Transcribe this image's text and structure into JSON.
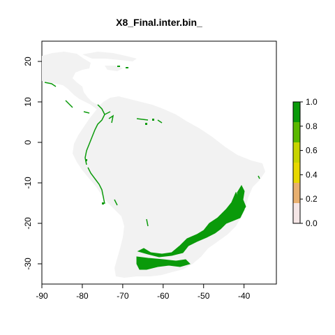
{
  "title": "X8_Final.inter.bin_",
  "map": {
    "x_range": [
      -90,
      -32
    ],
    "y_range": [
      -35,
      25
    ],
    "x_ticks": [
      -90,
      -80,
      -70,
      -60,
      -50,
      -40
    ],
    "y_ticks": [
      20,
      10,
      0,
      -10,
      -20,
      -30
    ],
    "land_color": "#f2f2f2",
    "presence_color": "#0a9a0a"
  },
  "legend": {
    "ticks": [
      "1.0",
      "0.8",
      "0.6",
      "0.4",
      "0.2",
      "0.0"
    ],
    "colors": [
      "#0a9a0a",
      "#5ab800",
      "#c8d400",
      "#e8d800",
      "#e8b070",
      "#f5e6e6"
    ]
  },
  "chart_data": {
    "type": "heatmap",
    "title": "X8_Final.inter.bin_",
    "xlabel": "",
    "ylabel": "",
    "xlim": [
      -90,
      -32
    ],
    "ylim": [
      -35,
      25
    ],
    "color_scale": {
      "min": 0.0,
      "max": 1.0
    },
    "description_values": "binary suitability map: 1 = predicted presence (green), 0 = absence (light grey land)"
  }
}
